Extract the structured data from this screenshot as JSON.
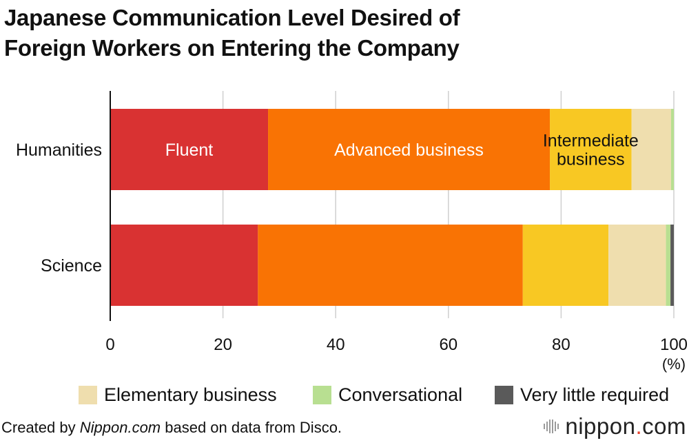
{
  "title_lines": [
    "Japanese Communication Level Desired of",
    "Foreign Workers on Entering the Company"
  ],
  "chart_data": {
    "type": "bar",
    "orientation": "horizontal",
    "stacked": true,
    "categories": [
      "Humanities",
      "Science"
    ],
    "series": [
      {
        "name": "Fluent",
        "color": "#d93232",
        "values": [
          28.0,
          26.2
        ]
      },
      {
        "name": "Advanced business",
        "color": "#f97304",
        "values": [
          50.0,
          47.0
        ]
      },
      {
        "name": "Intermediate business",
        "color": "#f8c823",
        "values": [
          14.5,
          15.2
        ]
      },
      {
        "name": "Elementary business",
        "color": "#efdeae",
        "values": [
          7.0,
          10.2
        ]
      },
      {
        "name": "Conversational",
        "color": "#b8df91",
        "values": [
          0.5,
          0.8
        ]
      },
      {
        "name": "Very little required",
        "color": "#5a5a5a",
        "values": [
          0.0,
          0.6
        ]
      }
    ],
    "in_bar_labels": [
      {
        "text": "Fluent",
        "series": 0,
        "category": 0,
        "color": "#ffffff"
      },
      {
        "text": "Advanced business",
        "series": 1,
        "category": 0,
        "color": "#ffffff"
      },
      {
        "lines": [
          "Intermediate",
          "business"
        ],
        "series": 2,
        "category": 0,
        "color": "#111111"
      }
    ],
    "xlim": [
      0,
      100
    ],
    "x_ticks": [
      0,
      20,
      40,
      60,
      80,
      100
    ],
    "x_unit": "(%)",
    "grid": true,
    "legend_entries": [
      3,
      4,
      5
    ]
  },
  "credit": {
    "prefix": "Created by ",
    "source_name": "Nippon.com",
    "suffix": " based on data from Disco."
  },
  "brand": {
    "text_a": "nippon",
    "text_dot": ".",
    "text_b": "com"
  }
}
